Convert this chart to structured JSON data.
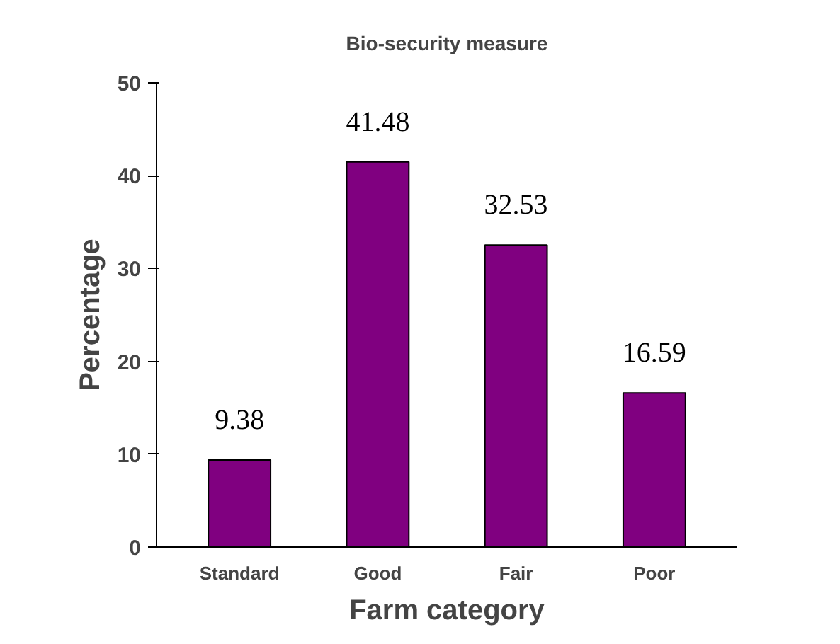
{
  "chart_data": {
    "type": "bar",
    "title": "Bio-security measure",
    "xlabel": "Farm category",
    "ylabel": "Percentage",
    "categories": [
      "Standard",
      "Good",
      "Fair",
      "Poor"
    ],
    "values": [
      9.38,
      41.48,
      32.53,
      16.59
    ],
    "color": "#800080",
    "ylim": [
      0,
      50
    ],
    "yticks": [
      0,
      10,
      20,
      30,
      40,
      50
    ],
    "grid": false,
    "data_labels": true
  }
}
